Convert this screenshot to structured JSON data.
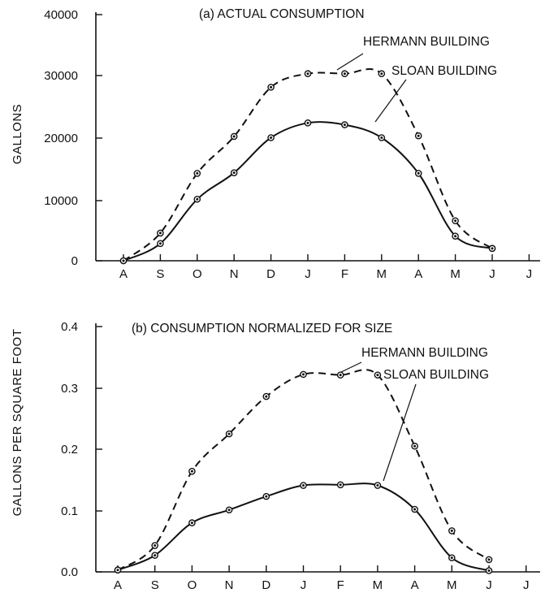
{
  "chart_data": [
    {
      "type": "line",
      "title": "(a) ACTUAL CONSUMPTION",
      "ylabel": "GALLONS",
      "xlabel": "",
      "categories": [
        "A",
        "S",
        "O",
        "N",
        "D",
        "J",
        "F",
        "M",
        "A",
        "M",
        "J",
        "J"
      ],
      "yticks": [
        0,
        10000,
        20000,
        30000,
        40000
      ],
      "ylim": [
        0,
        40000
      ],
      "series": [
        {
          "name": "HERMANN BUILDING",
          "style": "dashed",
          "values": [
            0,
            4500,
            14200,
            20200,
            28200,
            30400,
            30400,
            30400,
            20300,
            6500,
            2000,
            null
          ]
        },
        {
          "name": "SLOAN BUILDING",
          "style": "solid",
          "values": [
            0,
            2800,
            10000,
            14300,
            20000,
            22400,
            22100,
            20000,
            14200,
            4000,
            2000,
            null
          ]
        }
      ]
    },
    {
      "type": "line",
      "title": "(b) CONSUMPTION NORMALIZED FOR SIZE",
      "ylabel": "GALLONS PER SQUARE FOOT",
      "xlabel": "",
      "categories": [
        "A",
        "S",
        "O",
        "N",
        "D",
        "J",
        "F",
        "M",
        "A",
        "M",
        "J",
        "J"
      ],
      "yticks": [
        0.0,
        0.1,
        0.2,
        0.3,
        0.4
      ],
      "ylim": [
        0,
        0.4
      ],
      "series": [
        {
          "name": "HERMANN BUILDING",
          "style": "dashed",
          "values": [
            0.003,
            0.043,
            0.164,
            0.225,
            0.286,
            0.322,
            0.321,
            0.321,
            0.205,
            0.067,
            0.02,
            null
          ]
        },
        {
          "name": "SLOAN BUILDING",
          "style": "solid",
          "values": [
            0.003,
            0.027,
            0.08,
            0.101,
            0.123,
            0.141,
            0.142,
            0.141,
            0.102,
            0.023,
            0.002,
            null
          ]
        }
      ]
    }
  ],
  "tick_labels": {
    "a": [
      "0",
      "10000",
      "20000",
      "30000",
      "40000"
    ],
    "b": [
      "0.0",
      "0.1",
      "0.2",
      "0.3",
      "0.4"
    ]
  }
}
